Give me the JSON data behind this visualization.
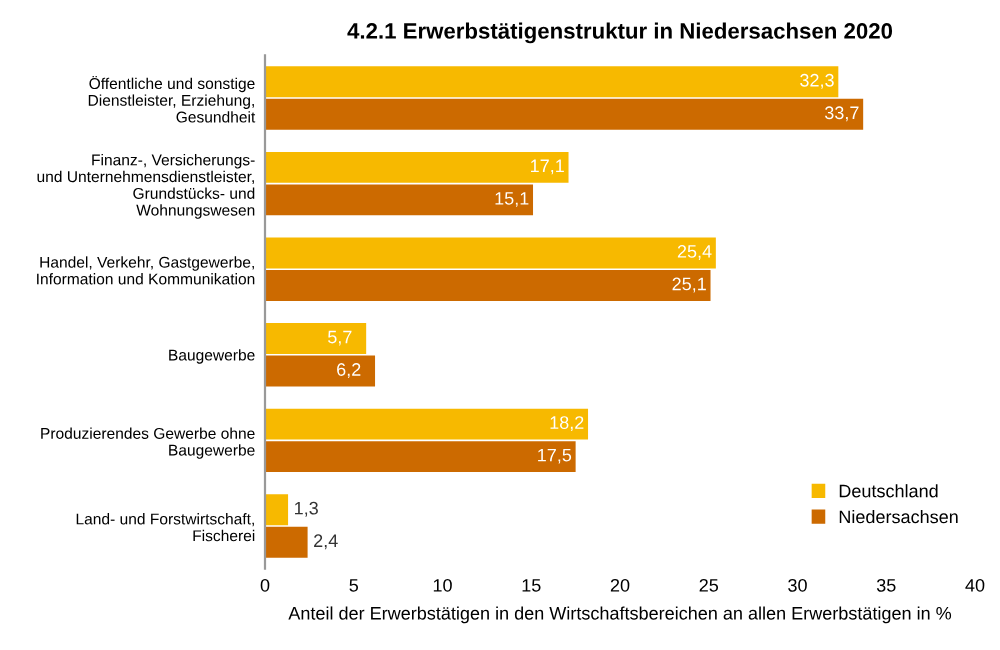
{
  "chart_data": {
    "type": "bar",
    "orientation": "horizontal",
    "title": "4.2.1 Erwerbstätigenstruktur in Niedersachsen 2020",
    "xlabel": "Anteil der Erwerbstätigen in den Wirtschaftsbereichen an allen Erwerbstätigen in %",
    "categories": [
      "Öffentliche und sonstige\nDienstleister, Erziehung,\nGesundheit",
      "Finanz-, Versicherungs-\nund Unternehmensdienstleister,\nGrundstücks- und\nWohnungswesen",
      "Handel, Verkehr, Gastgewerbe,\nInformation und Kommunikation",
      "Baugewerbe",
      "Produzierendes Gewerbe ohne\nBaugewerbe",
      "Land- und Forstwirtschaft,\nFischerei"
    ],
    "series": [
      {
        "name": "Deutschland",
        "color": "#f7b900",
        "values": [
          32.3,
          17.1,
          25.4,
          5.7,
          18.2,
          1.3
        ],
        "value_labels": [
          "32,3",
          "17,1",
          "25,4",
          "5,7",
          "18,2",
          "1,3"
        ]
      },
      {
        "name": "Niedersachsen",
        "color": "#cc6a00",
        "values": [
          33.7,
          15.1,
          25.1,
          6.2,
          17.5,
          2.4
        ],
        "value_labels": [
          "33,7",
          "15,1",
          "25,1",
          "6,2",
          "17,5",
          "2,4"
        ]
      }
    ],
    "xlim": [
      0,
      40
    ],
    "xticks": [
      0,
      5,
      10,
      15,
      20,
      25,
      30,
      35,
      40
    ],
    "grid": false,
    "legend": "bottom right"
  }
}
